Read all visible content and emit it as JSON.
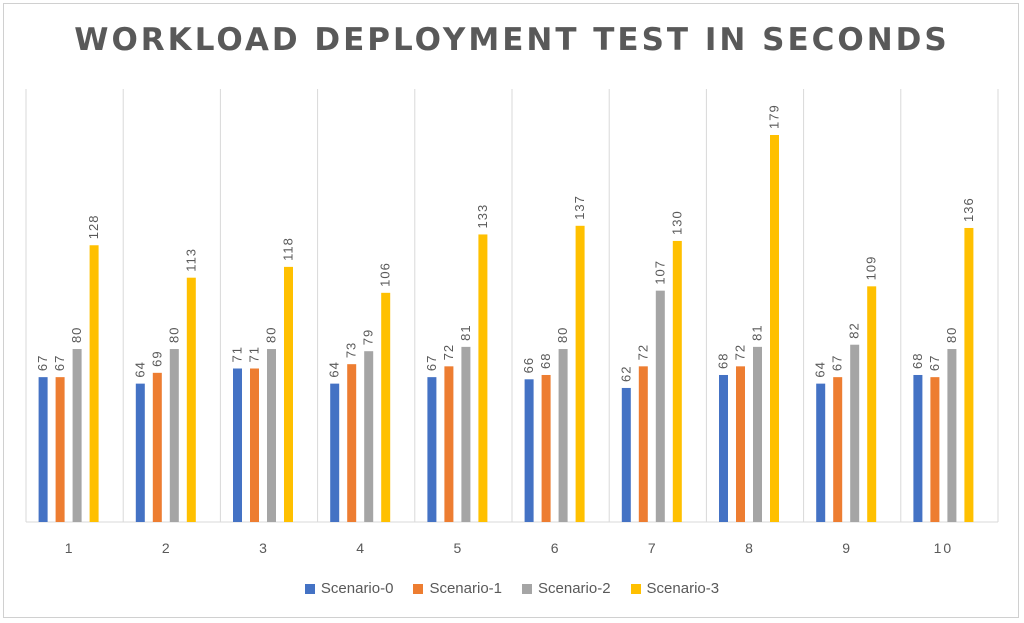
{
  "chart_data": {
    "type": "bar",
    "title": "WORKLOAD DEPLOYMENT TEST IN SECONDS",
    "categories": [
      "1",
      "2",
      "3",
      "4",
      "5",
      "6",
      "7",
      "8",
      "9",
      "10"
    ],
    "series": [
      {
        "name": "Scenario-0",
        "color": "#4472C4",
        "values": [
          67,
          64,
          71,
          64,
          67,
          66,
          62,
          68,
          64,
          68
        ]
      },
      {
        "name": "Scenario-1",
        "color": "#ED7D31",
        "values": [
          67,
          69,
          71,
          73,
          72,
          68,
          72,
          72,
          67,
          67
        ]
      },
      {
        "name": "Scenario-2",
        "color": "#A5A5A5",
        "values": [
          80,
          80,
          80,
          79,
          81,
          80,
          107,
          81,
          82,
          80
        ]
      },
      {
        "name": "Scenario-3",
        "color": "#FFC000",
        "values": [
          128,
          113,
          118,
          106,
          133,
          137,
          130,
          179,
          109,
          136
        ]
      }
    ],
    "ylim": [
      0,
      200
    ],
    "grid": "vertical category separators",
    "legend": "bottom",
    "data_labels": true
  }
}
